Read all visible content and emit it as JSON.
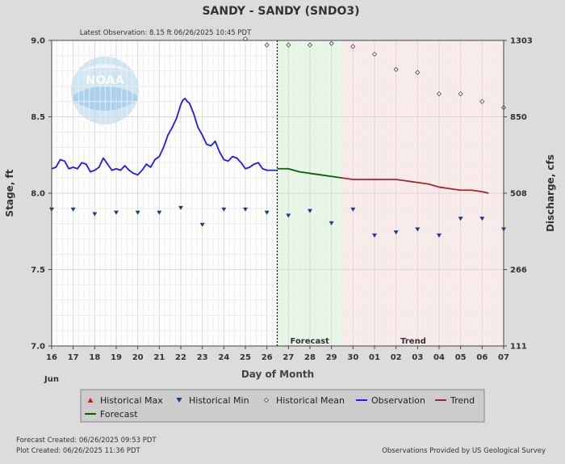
{
  "header": {
    "title": "SANDY - SANDY  (SNDO3)",
    "latest_observation": "Latest Observation:  8.15 ft 06/26/2025 10:45 PDT"
  },
  "footer": {
    "forecast_created": "Forecast Created:  06/26/2025 09:53 PDT",
    "plot_created": "Plot Created:  06/26/2025 11:36 PDT",
    "provider": "Observations Provided by US Geological Survey"
  },
  "logo": {
    "text": "NOAA"
  },
  "chart_data": {
    "type": "line",
    "xlabel": "Day of Month",
    "month_label": "Jun",
    "ylabel_left": "Stage, ft",
    "ylabel_right": "Discharge, cfs",
    "ylim": [
      7.0,
      9.0
    ],
    "xlim": [
      16,
      37
    ],
    "y_ticks": [
      "9.0",
      "8.5",
      "8.0",
      "7.5",
      "7.0"
    ],
    "y_tick_values": [
      9.0,
      8.5,
      8.0,
      7.5,
      7.0
    ],
    "y_right_ticks": [
      "1303",
      "850",
      "508",
      "266",
      "111"
    ],
    "x_ticks": [
      "16",
      "17",
      "18",
      "19",
      "20",
      "21",
      "22",
      "23",
      "24",
      "25",
      "26",
      "27",
      "28",
      "29",
      "30",
      "01",
      "02",
      "03",
      "04",
      "05",
      "06",
      "07"
    ],
    "grid": true,
    "now": 26.48,
    "forecast_region": {
      "label": "Forecast",
      "start": 26.48,
      "end": 29.5,
      "color": "#e6f7e6"
    },
    "trend_region": {
      "label": "Trend",
      "start": 29.5,
      "end": 37,
      "color": "#fbeaea"
    },
    "colors": {
      "observation": "#1a1aff",
      "forecast": "#006400",
      "trend": "#a02828",
      "historical_min": "#1a3c8c",
      "historical_mean": "#444444",
      "historical_max": "#c02020"
    },
    "legend": {
      "placement": "bottom",
      "items": [
        "Historical Max",
        "Historical Min",
        "Historical Mean",
        "Observation",
        "Trend",
        "Forecast"
      ]
    },
    "series": [
      {
        "name": "Observation",
        "x": [
          16.0,
          16.2,
          16.4,
          16.6,
          16.8,
          17.0,
          17.2,
          17.4,
          17.6,
          17.8,
          18.0,
          18.2,
          18.4,
          18.6,
          18.8,
          19.0,
          19.2,
          19.4,
          19.6,
          19.8,
          20.0,
          20.2,
          20.4,
          20.6,
          20.8,
          21.0,
          21.2,
          21.4,
          21.6,
          21.8,
          22.0,
          22.1,
          22.2,
          22.3,
          22.4,
          22.6,
          22.8,
          23.0,
          23.2,
          23.4,
          23.6,
          23.8,
          24.0,
          24.2,
          24.4,
          24.6,
          24.8,
          25.0,
          25.2,
          25.4,
          25.6,
          25.8,
          26.0,
          26.2,
          26.48
        ],
        "values": [
          8.16,
          8.17,
          8.22,
          8.21,
          8.16,
          8.17,
          8.16,
          8.2,
          8.19,
          8.14,
          8.15,
          8.17,
          8.23,
          8.19,
          8.15,
          8.16,
          8.15,
          8.18,
          8.15,
          8.13,
          8.12,
          8.15,
          8.19,
          8.17,
          8.22,
          8.24,
          8.3,
          8.38,
          8.43,
          8.49,
          8.58,
          8.61,
          8.62,
          8.6,
          8.59,
          8.52,
          8.43,
          8.38,
          8.32,
          8.31,
          8.34,
          8.27,
          8.22,
          8.21,
          8.24,
          8.23,
          8.2,
          8.16,
          8.17,
          8.19,
          8.2,
          8.16,
          8.15,
          8.15,
          8.15
        ]
      },
      {
        "name": "Forecast",
        "x": [
          26.48,
          27.0,
          27.5,
          28.0,
          28.5,
          29.0,
          29.5
        ],
        "values": [
          8.16,
          8.16,
          8.14,
          8.13,
          8.12,
          8.11,
          8.1
        ]
      },
      {
        "name": "Trend",
        "x": [
          29.5,
          30.0,
          30.5,
          31.0,
          31.5,
          32.0,
          32.5,
          33.0,
          33.5,
          34.0,
          34.5,
          35.0,
          35.5,
          36.0,
          36.3
        ],
        "values": [
          8.1,
          8.09,
          8.09,
          8.09,
          8.09,
          8.09,
          8.08,
          8.07,
          8.06,
          8.04,
          8.03,
          8.02,
          8.02,
          8.01,
          8.0
        ]
      },
      {
        "name": "Historical Min",
        "x": [
          16,
          17,
          18,
          19,
          20,
          21,
          22,
          23,
          24,
          25,
          26,
          27,
          28,
          29,
          30,
          31,
          32,
          33,
          34,
          35,
          36,
          37
        ],
        "values": [
          7.89,
          7.89,
          7.86,
          7.87,
          7.87,
          7.87,
          7.9,
          7.79,
          7.89,
          7.89,
          7.87,
          7.85,
          7.88,
          7.8,
          7.89,
          7.72,
          7.74,
          7.76,
          7.72,
          7.83,
          7.83,
          7.76
        ]
      },
      {
        "name": "Historical Mean",
        "x": [
          25,
          26,
          27,
          28,
          29,
          30,
          31,
          32,
          33,
          34,
          35,
          36,
          37
        ],
        "values": [
          9.01,
          8.97,
          8.97,
          8.97,
          8.98,
          8.96,
          8.91,
          8.81,
          8.79,
          8.65,
          8.65,
          8.6,
          8.56
        ]
      }
    ]
  }
}
